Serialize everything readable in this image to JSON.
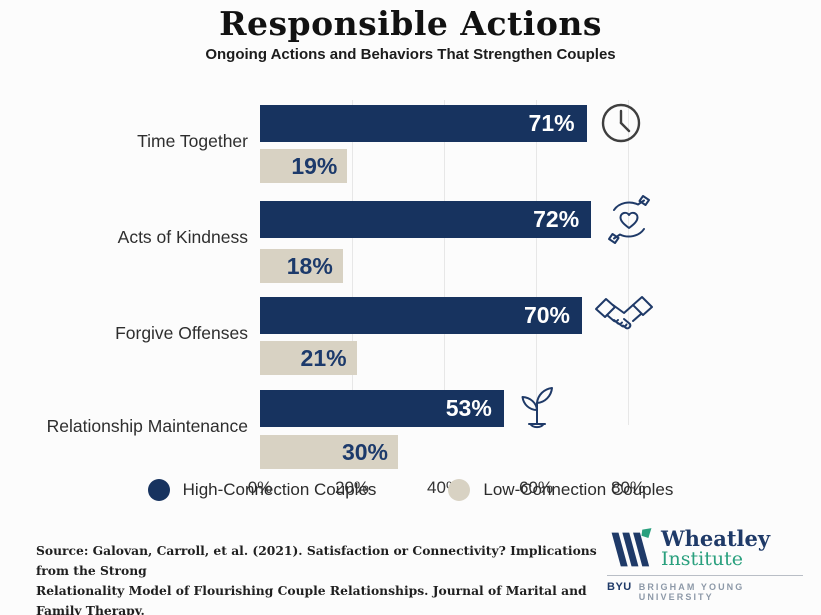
{
  "title": "Responsible Actions",
  "subtitle": "Ongoing Actions and Behaviors That Strengthen Couples",
  "chart_data": {
    "type": "bar",
    "orientation": "horizontal",
    "title": "Responsible Actions",
    "subtitle": "Ongoing Actions and Behaviors That Strengthen Couples",
    "xlim": [
      0,
      100
    ],
    "x_ticks": [
      "0%",
      "20%",
      "40%",
      "60%",
      "80%"
    ],
    "grid": "vertical lines at 20/40/60/80",
    "legend_position": "bottom",
    "categories": [
      "Time Together",
      "Acts of Kindness",
      "Forgive Offenses",
      "Relationship Maintenance"
    ],
    "series": [
      {
        "name": "High-Connection Couples",
        "color": "#17335f",
        "values": [
          71,
          72,
          70,
          53
        ]
      },
      {
        "name": "Low-Connection Couples",
        "color": "#d8d2c3",
        "values": [
          19,
          18,
          21,
          30
        ]
      }
    ],
    "groups": [
      {
        "label": "Time Together",
        "high": 71,
        "high_label": "71%",
        "low": 19,
        "low_label": "19%",
        "icon": "clock-icon"
      },
      {
        "label": "Acts of Kindness",
        "high": 72,
        "high_label": "72%",
        "low": 18,
        "low_label": "18%",
        "icon": "hands-heart-icon"
      },
      {
        "label": "Forgive Offenses",
        "high": 70,
        "high_label": "70%",
        "low": 21,
        "low_label": "21%",
        "icon": "handshake-icon"
      },
      {
        "label": "Relationship Maintenance",
        "high": 53,
        "high_label": "53%",
        "low": 30,
        "low_label": "30%",
        "icon": "sprout-icon"
      }
    ]
  },
  "legend": {
    "items": [
      {
        "label": "High-Connection Couples",
        "color": "#17335f"
      },
      {
        "label": "Low-Connection Couples",
        "color": "#d8d2c3"
      }
    ]
  },
  "source": {
    "line1": "Source: Galovan, Carroll, et al. (2021). Satisfaction or Connectivity? Implications from the Strong",
    "line2": "Relationality Model of Flourishing Couple Relationships. Journal of Marital and Family Therapy."
  },
  "logo": {
    "name": "Wheatley",
    "institute": "Institute",
    "byu": "BYU",
    "university": "BRIGHAM YOUNG UNIVERSITY"
  },
  "colors": {
    "high_bar": "#17335f",
    "low_bar": "#d8d2c3",
    "background": "#fcfcfc",
    "logo_green": "#2aa07e",
    "logo_navy": "#1f3a68"
  }
}
